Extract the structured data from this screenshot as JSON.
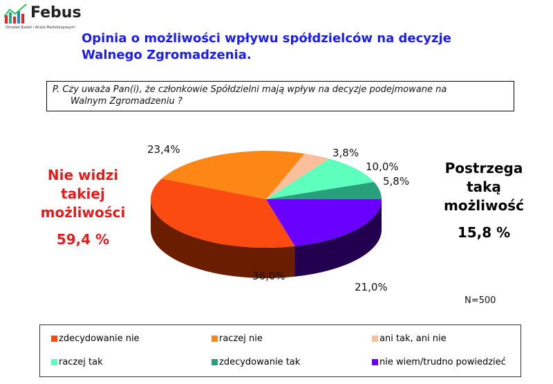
{
  "logo": {
    "name": "Febus",
    "subtitle": "Ośrodek Badań i Analiz Marketingowych"
  },
  "title": "Opinia o możliwości wpływu spółdzielców na decyzje Walnego Zgromadzenia.",
  "question": {
    "line1": "P. Czy uważa Pan(i), że  członkowie Spółdzielni mają wpływ na decyzje podejmowane na",
    "line2": "Walnym Zgromadzeniu ?"
  },
  "left_summary": {
    "lines": [
      "Nie widzi",
      "takiej",
      "możliwości"
    ],
    "value": "59,4 %",
    "color": "#e61b1b"
  },
  "right_summary": {
    "lines": [
      "Postrzega",
      "taką",
      "możliwość"
    ],
    "value": "15,8 %"
  },
  "sample": "N=500",
  "chart_data": {
    "type": "pie",
    "title": "Opinia o możliwości wpływu spółdzielców na decyzje Walnego Zgromadzenia.",
    "legend_position": "bottom",
    "slices": [
      {
        "label": "zdecydowanie nie",
        "value": 36.0,
        "text": "36,0%",
        "color": "#fc4b10",
        "side": "#6b1d00"
      },
      {
        "label": "raczej nie",
        "value": 23.4,
        "text": "23,4%",
        "color": "#fd8614",
        "side": "#7a3e05"
      },
      {
        "label": "ani tak, ani nie",
        "value": 3.8,
        "text": "3,8%",
        "color": "#fcbf9c",
        "side": "#8a6a55"
      },
      {
        "label": "raczej tak",
        "value": 10.0,
        "text": "10,0%",
        "color": "#5effbd",
        "side": "#2a8a60"
      },
      {
        "label": "zdecydowanie tak",
        "value": 5.8,
        "text": "5,8%",
        "color": "#28a07c",
        "side": "#145040"
      },
      {
        "label": "nie wiem/trudno powiedzieć",
        "value": 21.0,
        "text": "21,0%",
        "color": "#6a00ff",
        "side": "#22004f"
      }
    ]
  }
}
